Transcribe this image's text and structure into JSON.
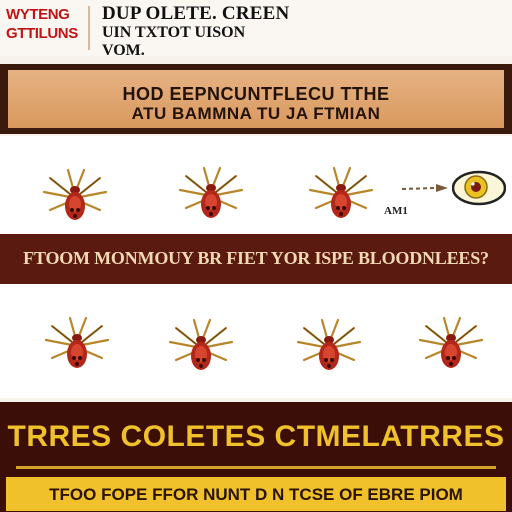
{
  "header": {
    "logo_line1": "WYTENG",
    "logo_line2": "GTTILUNS",
    "line1": "DUP OLETE. CREEN",
    "line2": "UIN      TXTOT UISON",
    "line3": "VOM."
  },
  "band": {
    "line1": "HOD EEPNCUNTFLECU TTHE",
    "line2": "ATU BAMMNA TU JA FTMIAN"
  },
  "annotation": "AM1",
  "question": "FTOOM MONMOUY BR FIET YOR ISPE BLOODNLEES?",
  "bottom": {
    "title": "TRRES COLETES  CTMELATRRES",
    "subtitle": "TFOO FOPE FFOR NUNT D N TCSE OF EBRE PIOM"
  },
  "colors": {
    "band": "#d9995e",
    "question_band": "#5b1a10",
    "bottom_bg": "#3b0f08",
    "accent_gold": "#f0c12a",
    "logo_red": "#c01414"
  },
  "icons": {
    "creature": "tick-insect-icon",
    "eye": "eye-icon",
    "arrow": "arrow-icon"
  }
}
